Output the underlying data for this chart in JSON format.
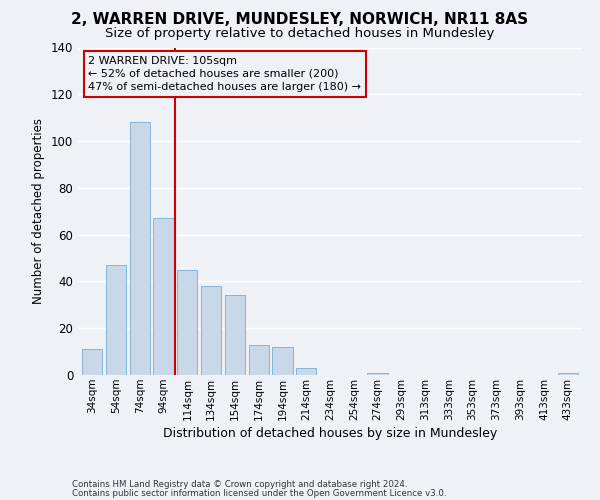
{
  "title": "2, WARREN DRIVE, MUNDESLEY, NORWICH, NR11 8AS",
  "subtitle": "Size of property relative to detached houses in Mundesley",
  "xlabel": "Distribution of detached houses by size in Mundesley",
  "ylabel": "Number of detached properties",
  "bar_labels": [
    "34sqm",
    "54sqm",
    "74sqm",
    "94sqm",
    "114sqm",
    "134sqm",
    "154sqm",
    "174sqm",
    "194sqm",
    "214sqm",
    "234sqm",
    "254sqm",
    "274sqm",
    "293sqm",
    "313sqm",
    "333sqm",
    "353sqm",
    "373sqm",
    "393sqm",
    "413sqm",
    "433sqm"
  ],
  "bar_values": [
    11,
    47,
    108,
    67,
    45,
    38,
    34,
    13,
    12,
    3,
    0,
    0,
    1,
    0,
    0,
    0,
    0,
    0,
    0,
    0,
    1
  ],
  "bar_color": "#c8d8e8",
  "bar_edge_color": "#7aadcf",
  "vline_x": 3.5,
  "vline_color": "#cc0000",
  "ylim": [
    0,
    140
  ],
  "yticks": [
    0,
    20,
    40,
    60,
    80,
    100,
    120,
    140
  ],
  "annotation_title": "2 WARREN DRIVE: 105sqm",
  "annotation_line1": "← 52% of detached houses are smaller (200)",
  "annotation_line2": "47% of semi-detached houses are larger (180) →",
  "annotation_box_color": "#cc0000",
  "footer_line1": "Contains HM Land Registry data © Crown copyright and database right 2024.",
  "footer_line2": "Contains public sector information licensed under the Open Government Licence v3.0.",
  "bg_color": "#eef2f7",
  "grid_color": "#ffffff",
  "title_fontsize": 11,
  "subtitle_fontsize": 9.5
}
